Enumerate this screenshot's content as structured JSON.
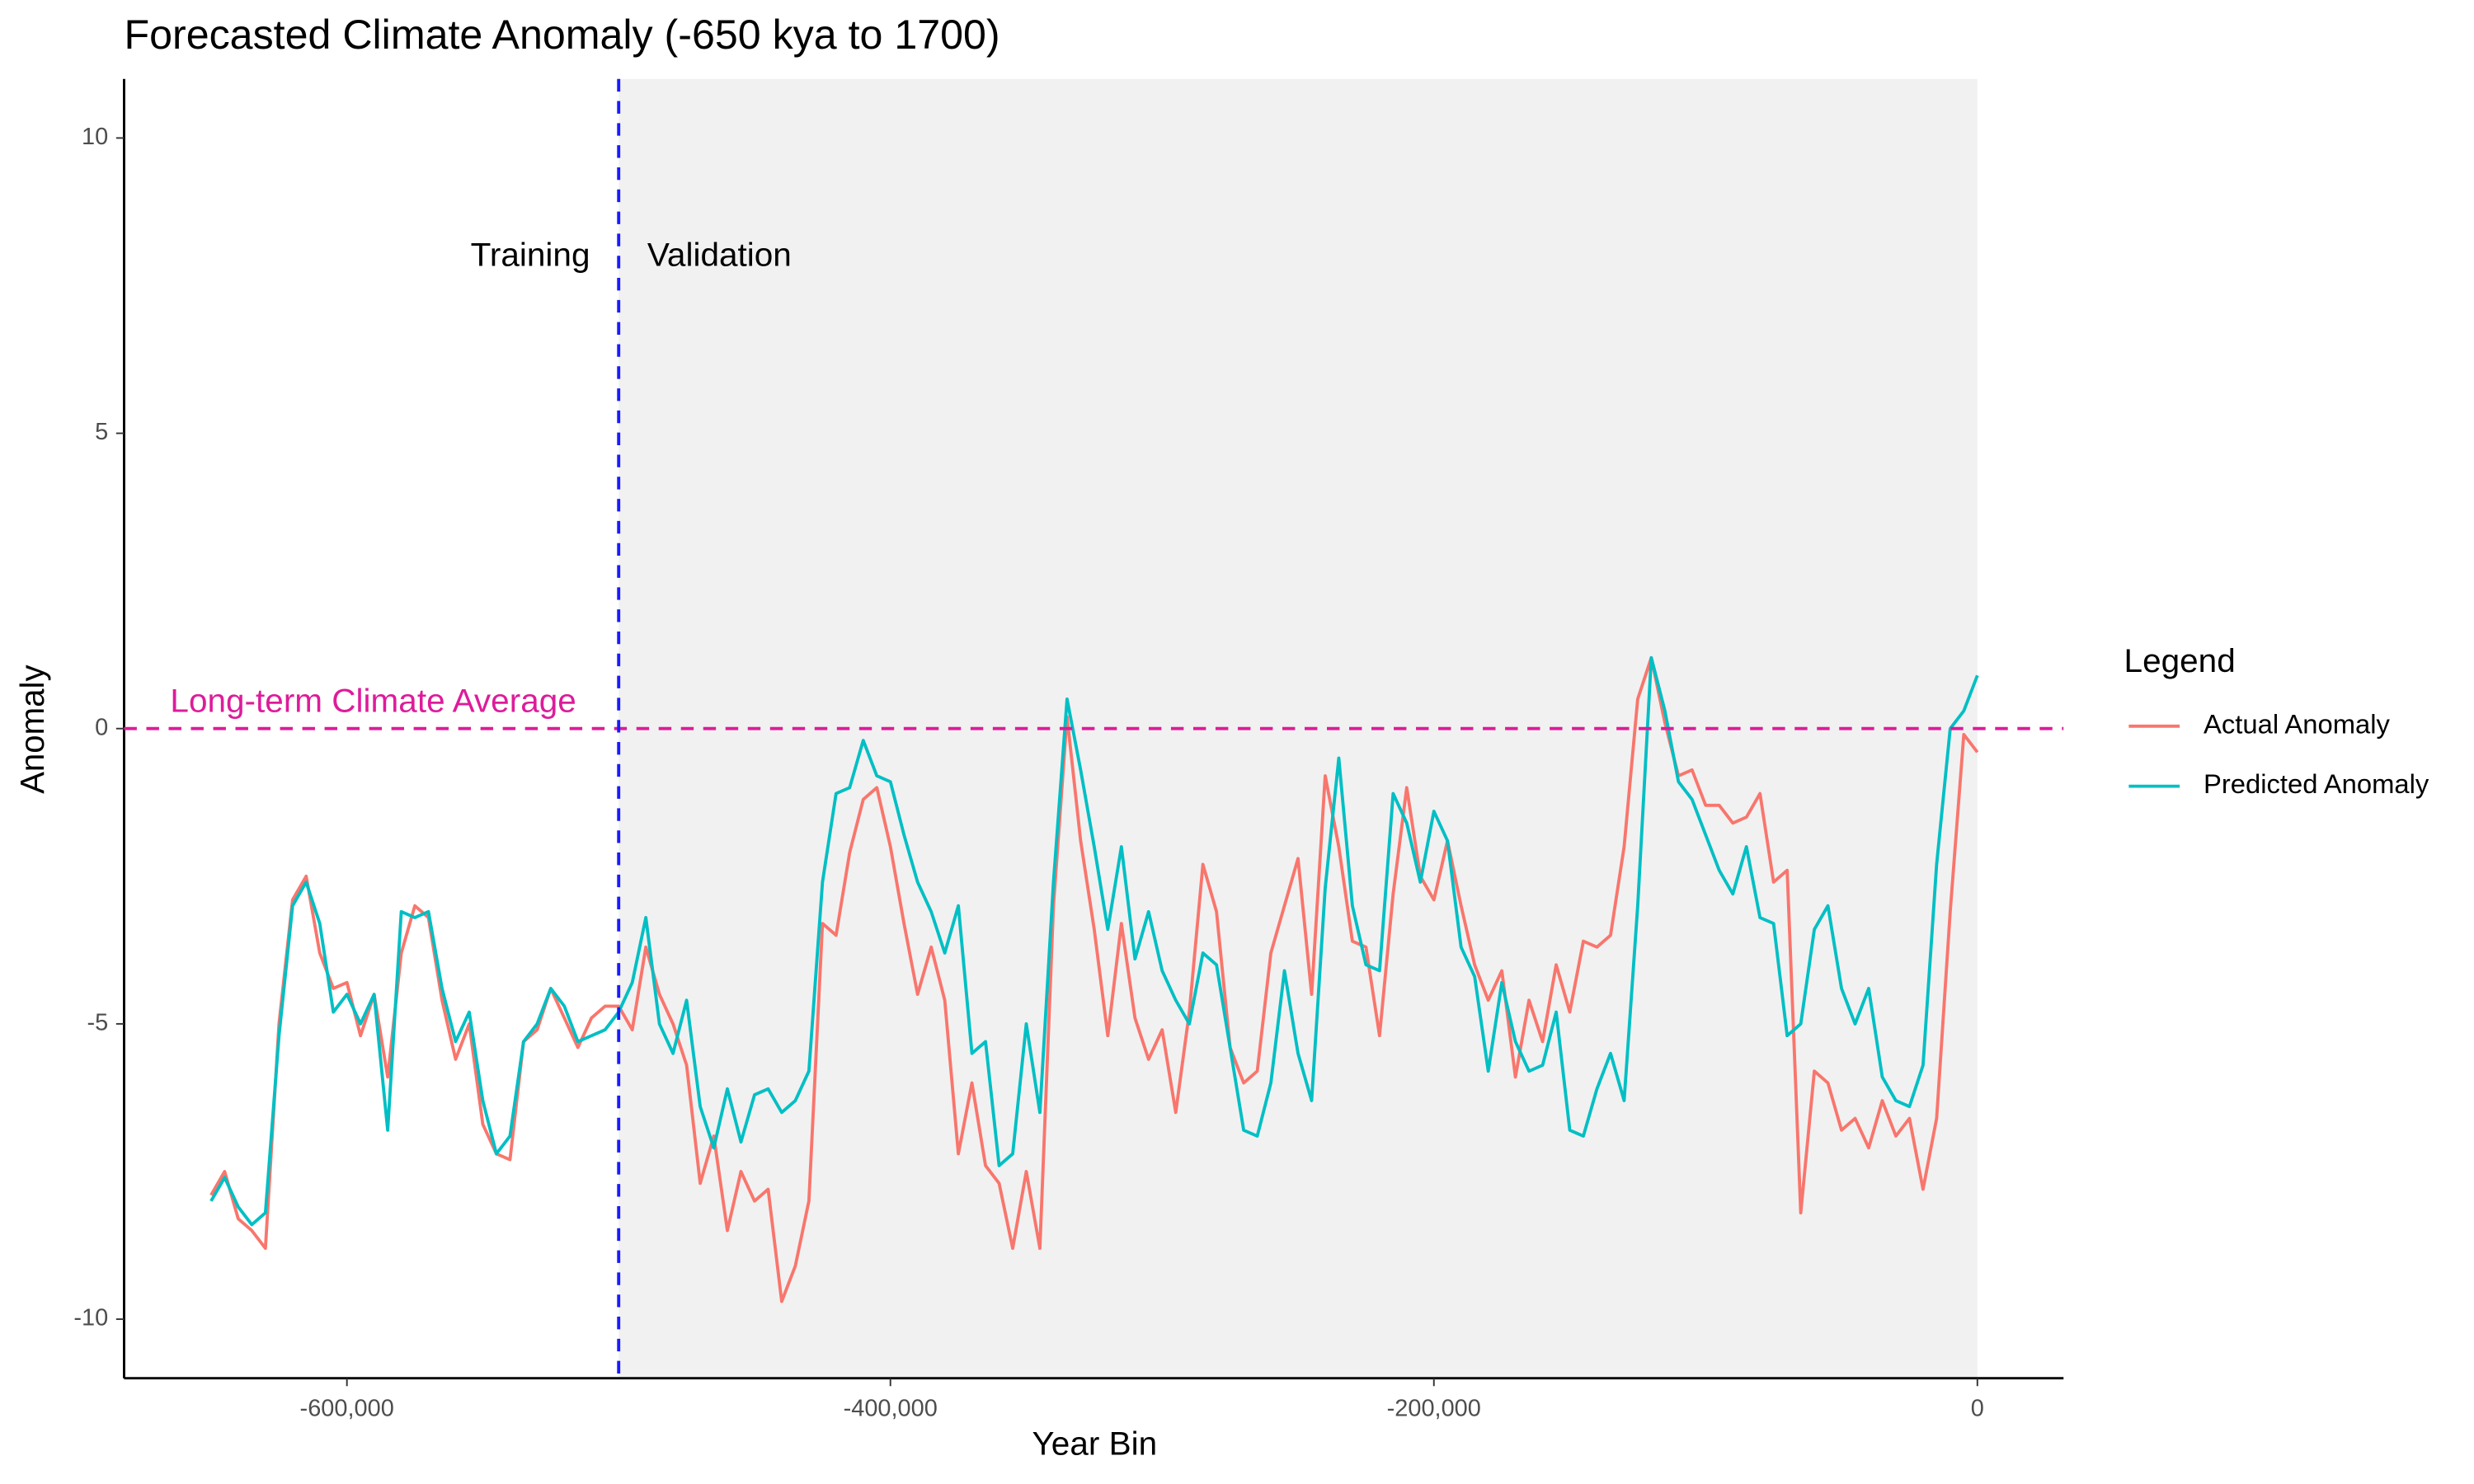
{
  "chart_data": {
    "type": "line",
    "title": "Forecasted Climate Anomaly (-650 kya to 1700)",
    "x_label": "Year Bin",
    "y_label": "Anomaly",
    "legend_title": "Legend",
    "legend_position": "right",
    "grid": false,
    "xlim": [
      -682000,
      31700
    ],
    "ylim": [
      -11,
      11
    ],
    "xticks": [
      {
        "value": -600000,
        "label": "-600,000"
      },
      {
        "value": -400000,
        "label": "-400,000"
      },
      {
        "value": -200000,
        "label": "-200,000"
      },
      0
    ],
    "yticks": [
      -10,
      -5,
      0,
      5,
      10
    ],
    "vline": {
      "value": -500000,
      "color": "#1a1aff",
      "left_label": "Training",
      "right_label": "Validation"
    },
    "hline": {
      "value": 0,
      "color": "#dd1c9a",
      "label": "Long-term Climate Average"
    },
    "shaded_xlim": [
      -500000,
      0
    ],
    "x": [
      -650000,
      -645000,
      -640000,
      -635000,
      -630000,
      -625000,
      -620000,
      -615000,
      -610000,
      -605000,
      -600000,
      -595000,
      -590000,
      -585000,
      -580000,
      -575000,
      -570000,
      -565000,
      -560000,
      -555000,
      -550000,
      -545000,
      -540000,
      -535000,
      -530000,
      -525000,
      -520000,
      -515000,
      -510000,
      -505000,
      -500000,
      -495000,
      -490000,
      -485000,
      -480000,
      -475000,
      -470000,
      -465000,
      -460000,
      -455000,
      -450000,
      -445000,
      -440000,
      -435000,
      -430000,
      -425000,
      -420000,
      -415000,
      -410000,
      -405000,
      -400000,
      -395000,
      -390000,
      -385000,
      -380000,
      -375000,
      -370000,
      -365000,
      -360000,
      -355000,
      -350000,
      -345000,
      -340000,
      -335000,
      -330000,
      -325000,
      -320000,
      -315000,
      -310000,
      -305000,
      -300000,
      -295000,
      -290000,
      -285000,
      -280000,
      -275000,
      -270000,
      -265000,
      -260000,
      -255000,
      -250000,
      -245000,
      -240000,
      -235000,
      -230000,
      -225000,
      -220000,
      -215000,
      -210000,
      -205000,
      -200000,
      -195000,
      -190000,
      -185000,
      -180000,
      -175000,
      -170000,
      -165000,
      -160000,
      -155000,
      -150000,
      -145000,
      -140000,
      -135000,
      -130000,
      -125000,
      -120000,
      -115000,
      -110000,
      -105000,
      -100000,
      -95000,
      -90000,
      -85000,
      -80000,
      -75000,
      -70000,
      -65000,
      -60000,
      -55000,
      -50000,
      -45000,
      -40000,
      -35000,
      -30000,
      -25000,
      -20000,
      -15000,
      -10000,
      -5000,
      0
    ],
    "series": [
      {
        "name": "Actual Anomaly",
        "color": "#F8766D",
        "values": [
          -7.9,
          -7.5,
          -8.3,
          -8.5,
          -8.8,
          -5.0,
          -2.9,
          -2.5,
          -3.8,
          -4.4,
          -4.3,
          -5.2,
          -4.5,
          -5.9,
          -3.8,
          -3.0,
          -3.2,
          -4.6,
          -5.6,
          -5.0,
          -6.7,
          -7.2,
          -7.3,
          -5.3,
          -5.1,
          -4.4,
          -4.9,
          -5.4,
          -4.9,
          -4.7,
          -4.7,
          -5.1,
          -3.7,
          -4.5,
          -5.0,
          -5.7,
          -7.7,
          -6.9,
          -8.5,
          -7.5,
          -8.0,
          -7.8,
          -9.7,
          -9.1,
          -8.0,
          -3.3,
          -3.5,
          -2.1,
          -1.2,
          -1.0,
          -2.0,
          -3.3,
          -4.5,
          -3.7,
          -4.6,
          -7.2,
          -6.0,
          -7.4,
          -7.7,
          -8.8,
          -7.5,
          -8.8,
          -3.0,
          0.2,
          -1.9,
          -3.4,
          -5.2,
          -3.3,
          -4.9,
          -5.6,
          -5.1,
          -6.5,
          -4.8,
          -2.3,
          -3.1,
          -5.4,
          -6.0,
          -5.8,
          -3.8,
          -3.0,
          -2.2,
          -4.5,
          -0.8,
          -2.0,
          -3.6,
          -3.7,
          -5.2,
          -2.8,
          -1.0,
          -2.5,
          -2.9,
          -1.9,
          -3.0,
          -4.0,
          -4.6,
          -4.1,
          -5.9,
          -4.6,
          -5.3,
          -4.0,
          -4.8,
          -3.6,
          -3.7,
          -3.5,
          -2.0,
          0.5,
          1.2,
          0.1,
          -0.8,
          -0.7,
          -1.3,
          -1.3,
          -1.6,
          -1.5,
          -1.1,
          -2.6,
          -2.4,
          -8.2,
          -5.8,
          -6.0,
          -6.8,
          -6.6,
          -7.1,
          -6.3,
          -6.9,
          -6.6,
          -7.8,
          -6.6,
          -3.1,
          -0.1,
          -0.4
        ]
      },
      {
        "name": "Predicted Anomaly",
        "color": "#00BFC4",
        "values": [
          -8.0,
          -7.6,
          -8.1,
          -8.4,
          -8.2,
          -5.2,
          -3.0,
          -2.6,
          -3.3,
          -4.8,
          -4.5,
          -5.0,
          -4.5,
          -6.8,
          -3.1,
          -3.2,
          -3.1,
          -4.4,
          -5.3,
          -4.8,
          -6.3,
          -7.2,
          -6.9,
          -5.3,
          -5.0,
          -4.4,
          -4.7,
          -5.3,
          -5.2,
          -5.1,
          -4.8,
          -4.3,
          -3.2,
          -5.0,
          -5.5,
          -4.6,
          -6.4,
          -7.1,
          -6.1,
          -7.0,
          -6.2,
          -6.1,
          -6.5,
          -6.3,
          -5.8,
          -2.6,
          -1.1,
          -1.0,
          -0.2,
          -0.8,
          -0.9,
          -1.8,
          -2.6,
          -3.1,
          -3.8,
          -3.0,
          -5.5,
          -5.3,
          -7.4,
          -7.2,
          -5.0,
          -6.5,
          -2.6,
          0.5,
          -0.7,
          -2.0,
          -3.4,
          -2.0,
          -3.9,
          -3.1,
          -4.1,
          -4.6,
          -5.0,
          -3.8,
          -4.0,
          -5.4,
          -6.8,
          -6.9,
          -6.0,
          -4.1,
          -5.5,
          -6.3,
          -2.7,
          -0.5,
          -3.0,
          -4.0,
          -4.1,
          -1.1,
          -1.6,
          -2.6,
          -1.4,
          -1.9,
          -3.7,
          -4.2,
          -5.8,
          -4.3,
          -5.3,
          -5.8,
          -5.7,
          -4.8,
          -6.8,
          -6.9,
          -6.1,
          -5.5,
          -6.3,
          -3.0,
          1.2,
          0.3,
          -0.9,
          -1.2,
          -1.8,
          -2.4,
          -2.8,
          -2.0,
          -3.2,
          -3.3,
          -5.2,
          -5.0,
          -3.4,
          -3.0,
          -4.4,
          -5.0,
          -4.4,
          -5.9,
          -6.3,
          -6.4,
          -5.7,
          -2.3,
          0.0,
          0.3,
          0.9
        ]
      }
    ]
  }
}
